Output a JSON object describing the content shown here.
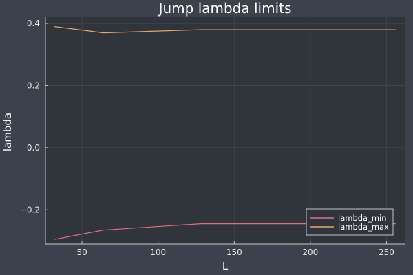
{
  "chart_data": {
    "type": "line",
    "title": "Jump lambda limits",
    "xlabel": "L",
    "ylabel": "lambda",
    "xlim": [
      26,
      262
    ],
    "ylim": [
      -0.31,
      0.42
    ],
    "xticks": [
      50,
      100,
      150,
      200,
      250
    ],
    "yticks": [
      -0.2,
      0.0,
      0.2,
      0.4
    ],
    "xtick_labels": [
      "50",
      "100",
      "150",
      "200",
      "250"
    ],
    "ytick_labels": [
      "−0.2",
      "0.0",
      "0.2",
      "0.4"
    ],
    "grid": true,
    "legend_position": "bottom-right",
    "series": [
      {
        "name": "lambda_min",
        "color": "#e26f81",
        "x": [
          32,
          64,
          128,
          256
        ],
        "y": [
          -0.295,
          -0.265,
          -0.245,
          -0.245
        ]
      },
      {
        "name": "lambda_max",
        "color": "#e9a368",
        "x": [
          32,
          64,
          128,
          256
        ],
        "y": [
          0.39,
          0.37,
          0.38,
          0.38
        ]
      }
    ],
    "colors": {
      "background": "#3b424d",
      "plot_background": "#30343b",
      "grid": "#434850",
      "axis": "#c4c8ce",
      "legend_background": "#30343b",
      "legend_border": "#c4c8ce"
    }
  }
}
